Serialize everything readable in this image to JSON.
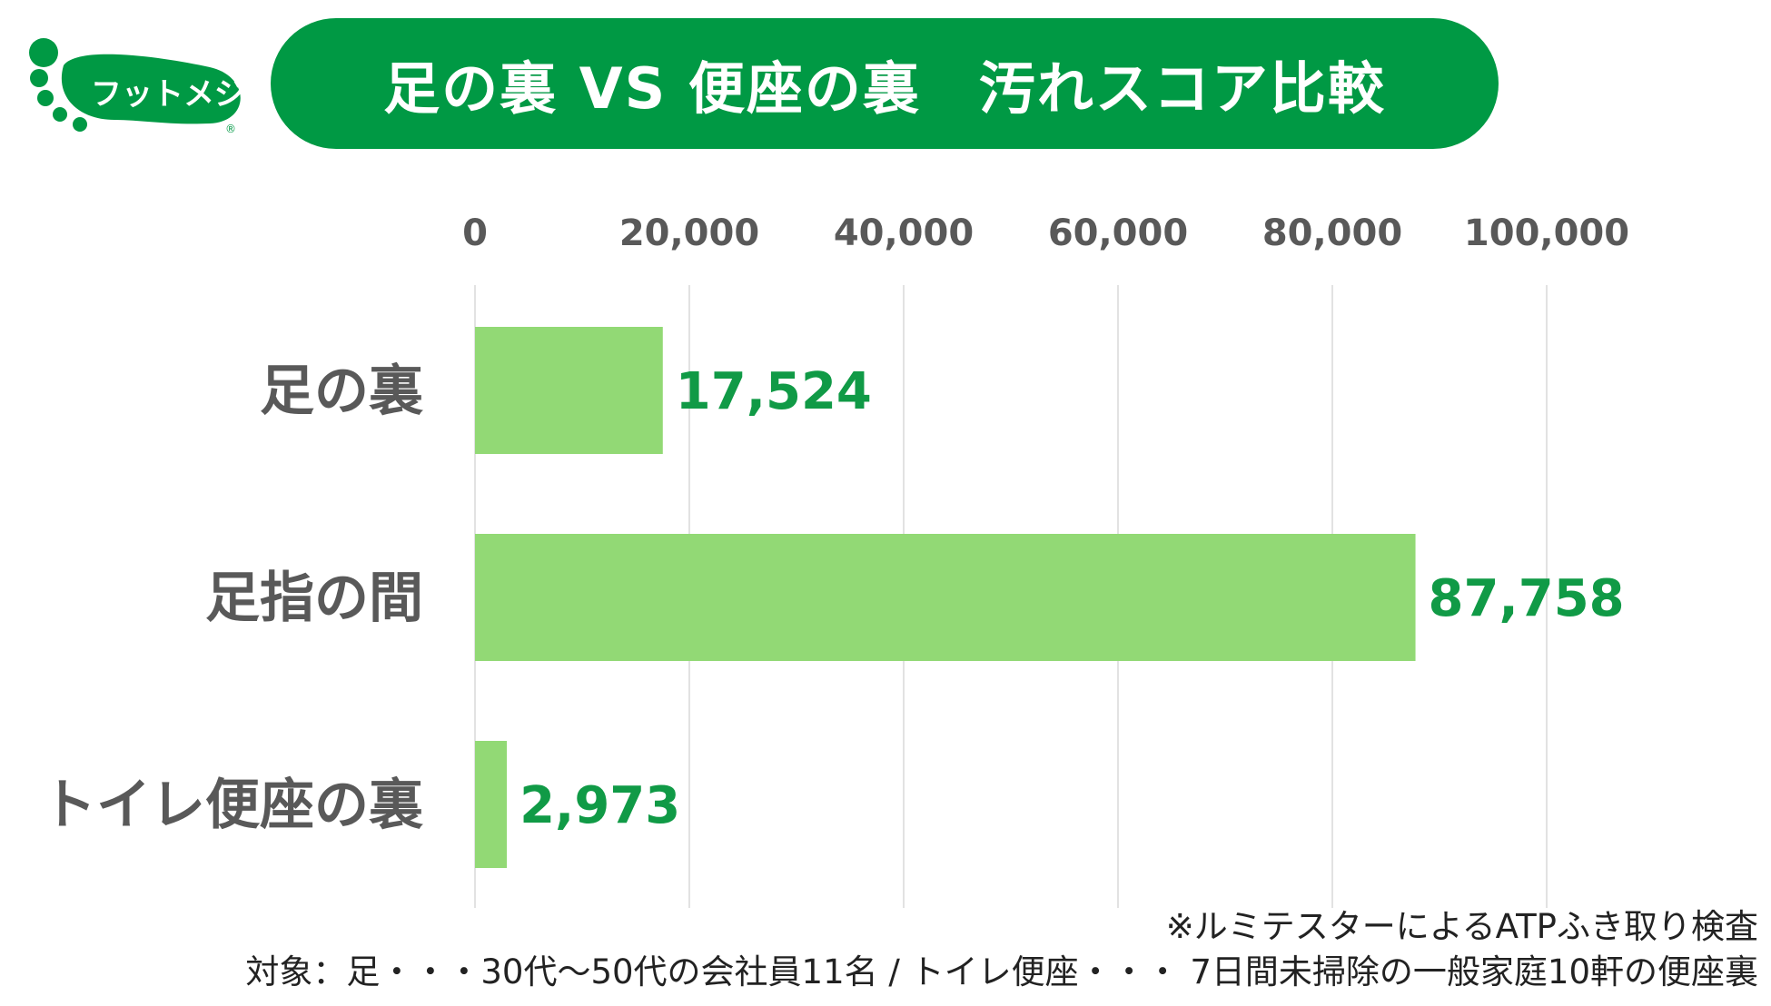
{
  "logo": {
    "text": "フットメジ",
    "mark": "®"
  },
  "title": "足の裏 VS 便座の裏　汚れスコア比較",
  "colors": {
    "brand": "#009944",
    "bar": "#92d975",
    "value": "#109a46",
    "axis_text": "#595959",
    "grid": "#d9d9d9"
  },
  "chart_data": {
    "type": "bar",
    "orientation": "horizontal",
    "title": "足の裏 VS 便座の裏　汚れスコア比較",
    "categories": [
      "足の裏",
      "足指の間",
      "トイレ便座の裏"
    ],
    "values": [
      17524,
      87758,
      2973
    ],
    "value_labels": [
      "17,524",
      "87,758",
      "2,973"
    ],
    "xlim": [
      0,
      100000
    ],
    "ticks": [
      0,
      20000,
      40000,
      60000,
      80000,
      100000
    ],
    "tick_labels": [
      "0",
      "20,000",
      "40,000",
      "60,000",
      "80,000",
      "100,000"
    ],
    "axis_position": "top",
    "grid": true
  },
  "notes": {
    "method": "※ルミテスターによるATPふき取り検査",
    "subjects": "対象：足・・・30代～50代の会社員11名 / トイレ便座・・・ 7日間未掃除の一般家庭10軒の便座裏"
  }
}
